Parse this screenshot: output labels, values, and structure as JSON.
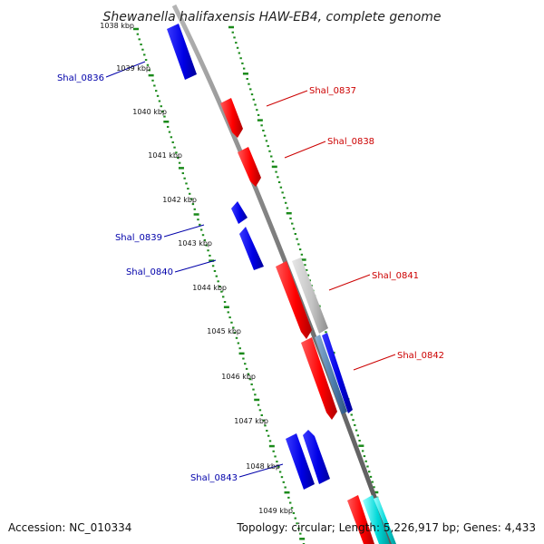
{
  "title": "Shewanella halifaxensis HAW-EB4, complete genome",
  "footer": {
    "accession": "Accession: NC_010334",
    "summary": "Topology: circular; Length: 5,226,917 bp; Genes: 4,433"
  },
  "colors": {
    "backbone": "#888888",
    "ticks": "#1a8a1a",
    "forward_gene": "#ff0000",
    "reverse_gene": "#0000dd",
    "unlabeled_gene": "#bbbbbb",
    "partial_gene": "#00cccc",
    "forward_label": "#cc0000",
    "reverse_label": "#0000aa"
  },
  "scale_labels": [
    "1038 kbp",
    "1039 kbp",
    "1040 kbp",
    "1041 kbp",
    "1042 kbp",
    "1043 kbp",
    "1044 kbp",
    "1045 kbp",
    "1046 kbp",
    "1047 kbp",
    "1048 kbp",
    "1049 kbp"
  ],
  "gene_labels": [
    {
      "id": "shal0836",
      "text": "Shal_0836",
      "strand": "reverse"
    },
    {
      "id": "shal0837",
      "text": "Shal_0837",
      "strand": "forward"
    },
    {
      "id": "shal0838",
      "text": "Shal_0838",
      "strand": "forward"
    },
    {
      "id": "shal0839",
      "text": "Shal_0839",
      "strand": "reverse"
    },
    {
      "id": "shal0840",
      "text": "Shal_0840",
      "strand": "reverse"
    },
    {
      "id": "shal0841",
      "text": "Shal_0841",
      "strand": "forward"
    },
    {
      "id": "shal0842",
      "text": "Shal_0842",
      "strand": "forward"
    },
    {
      "id": "shal0843",
      "text": "Shal_0843",
      "strand": "reverse"
    }
  ]
}
